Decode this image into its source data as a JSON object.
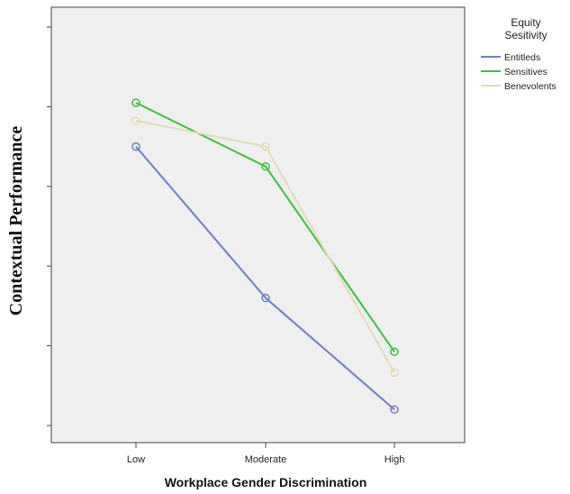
{
  "chart_data": {
    "type": "line",
    "categories": [
      "Low",
      "Moderate",
      "High"
    ],
    "xlabel": "Workplace Gender Discrimination",
    "ylabel": "Contextual Performance",
    "ylim": [
      0,
      100
    ],
    "grid": false,
    "legend": {
      "title_line1": "Equity",
      "title_line2": "Sesitivity",
      "placement": "right"
    },
    "series": [
      {
        "name": "Entitleds",
        "color": "#6b7fc4",
        "values": [
          70.0,
          32.0,
          4.0
        ]
      },
      {
        "name": "Sensitives",
        "color": "#3fbf3f",
        "values": [
          81.0,
          65.0,
          18.5
        ]
      },
      {
        "name": "Benevolents",
        "color": "#e3dcb7",
        "values": [
          76.5,
          70.0,
          13.3
        ]
      }
    ]
  }
}
